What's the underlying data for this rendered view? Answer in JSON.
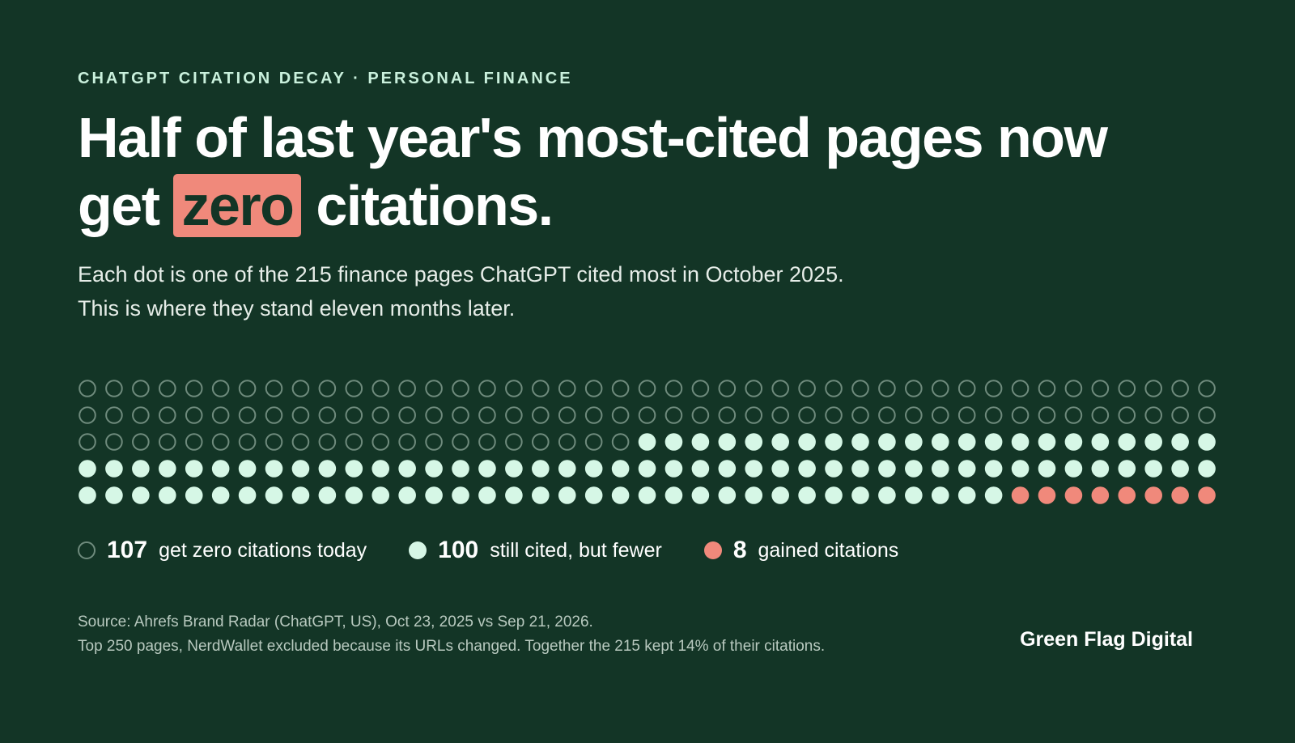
{
  "header": {
    "eyebrow": "CHATGPT CITATION DECAY · PERSONAL FINANCE",
    "headline_part1": "Half of last year's most-cited pages now get ",
    "headline_highlight": "zero",
    "headline_part2": " citations.",
    "subtitle_line1": "Each dot is one of the 215 finance pages ChatGPT cited most in October 2025.",
    "subtitle_line2": "This is where they stand eleven months later."
  },
  "colors": {
    "background": "#133526",
    "zero_outline": "#6f8b7d",
    "fewer": "#d6f7e6",
    "gained": "#f0897b"
  },
  "chart_data": {
    "type": "waffle",
    "total": 215,
    "columns": 43,
    "rows": 5,
    "fill_order": "row-major from top-left",
    "categories": [
      {
        "key": "zero",
        "count": 107,
        "label": "get zero citations today",
        "style": "outline"
      },
      {
        "key": "fewer",
        "count": 100,
        "label": "still cited, but fewer",
        "style": "filled"
      },
      {
        "key": "gained",
        "count": 8,
        "label": "gained citations",
        "style": "filled"
      }
    ]
  },
  "footer": {
    "source_line1": "Source: Ahrefs Brand Radar (ChatGPT, US), Oct 23, 2025 vs Sep 21, 2026.",
    "source_line2": "Top 250 pages, NerdWallet excluded because its URLs changed. Together the 215 kept 14% of their citations.",
    "brand": "Green Flag Digital"
  }
}
